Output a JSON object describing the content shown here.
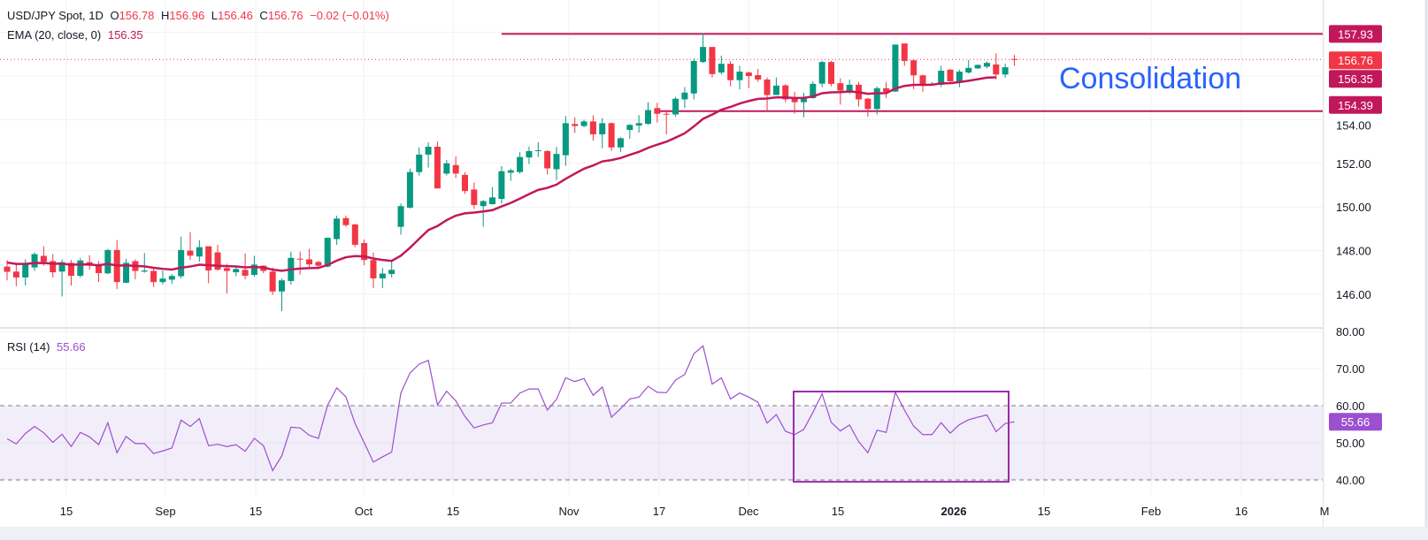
{
  "header": {
    "symbol": "USD/JPY Spot, 1D",
    "open_label": "O",
    "open": "156.78",
    "high_label": "H",
    "high": "156.96",
    "low_label": "L",
    "low": "156.46",
    "close_label": "C",
    "close": "156.76",
    "change": "−0.02 (−0.01%)",
    "ema_label": "EMA (20, close, 0)",
    "ema_value": "156.35",
    "rsi_label": "RSI (14)",
    "rsi_value": "55.66"
  },
  "annotation": "Consolidation",
  "colors": {
    "up": "#089981",
    "down": "#f23645",
    "ema": "#c2185b",
    "rsi": "#9c4fd0",
    "annotation": "#2962ff",
    "box": "#9c27b0"
  },
  "chart_data": [
    {
      "type": "candlestick",
      "title": "USD/JPY Spot, 1D",
      "ylim": [
        145,
        158.5
      ],
      "yticks": [
        "146.00",
        "148.00",
        "150.00",
        "152.00",
        "154.00"
      ],
      "xticks": [
        "15",
        "Sep",
        "15",
        "Oct",
        "15",
        "Nov",
        "17",
        "Dec",
        "15",
        "2026",
        "15",
        "Feb",
        "16",
        "M"
      ],
      "price_tags": [
        {
          "value": 157.93,
          "label": "157.93",
          "color": "#c2185b"
        },
        {
          "value": 156.76,
          "label": "156.76",
          "color": "#f23645"
        },
        {
          "value": 156.35,
          "label": "156.35",
          "color": "#c2185b"
        },
        {
          "value": 154.39,
          "label": "154.39",
          "color": "#c2185b"
        }
      ],
      "hlines": [
        {
          "value": 157.93,
          "from_index": 54
        },
        {
          "value": 154.39,
          "from_index": 71
        }
      ],
      "last_price_line": 156.76,
      "ema_period": 20,
      "ohlc": [
        [
          147.27,
          147.57,
          146.64,
          147.03
        ],
        [
          147.04,
          147.4,
          146.37,
          146.77
        ],
        [
          146.77,
          147.6,
          146.4,
          147.4
        ],
        [
          147.23,
          147.92,
          147.07,
          147.84
        ],
        [
          147.76,
          148.2,
          147.31,
          147.49
        ],
        [
          147.52,
          147.84,
          146.77,
          147.01
        ],
        [
          147.04,
          147.6,
          145.9,
          147.47
        ],
        [
          147.44,
          147.57,
          146.4,
          146.85
        ],
        [
          146.85,
          147.67,
          146.77,
          147.55
        ],
        [
          147.47,
          147.79,
          147.13,
          147.31
        ],
        [
          147.31,
          147.52,
          146.56,
          146.97
        ],
        [
          146.96,
          148.08,
          146.93,
          148.03
        ],
        [
          148.03,
          148.48,
          146.24,
          146.56
        ],
        [
          146.53,
          147.63,
          146.51,
          147.44
        ],
        [
          147.52,
          147.6,
          146.69,
          147.07
        ],
        [
          147.04,
          147.89,
          146.99,
          147.09
        ],
        [
          147.07,
          147.2,
          146.33,
          146.56
        ],
        [
          146.56,
          147.09,
          146.45,
          146.72
        ],
        [
          146.67,
          146.93,
          146.48,
          146.84
        ],
        [
          146.83,
          148.64,
          146.73,
          148.03
        ],
        [
          148.0,
          148.85,
          147.57,
          147.77
        ],
        [
          147.73,
          148.48,
          147.49,
          148.16
        ],
        [
          148.2,
          148.2,
          146.51,
          147.09
        ],
        [
          147.92,
          148.27,
          147.07,
          147.13
        ],
        [
          147.2,
          147.4,
          146.03,
          147.07
        ],
        [
          147.01,
          147.33,
          146.83,
          147.16
        ],
        [
          147.12,
          147.87,
          146.69,
          146.85
        ],
        [
          146.89,
          147.76,
          146.8,
          147.36
        ],
        [
          147.31,
          147.33,
          146.96,
          147.07
        ],
        [
          147.04,
          147.23,
          145.97,
          146.13
        ],
        [
          146.13,
          146.72,
          145.23,
          146.64
        ],
        [
          146.61,
          147.95,
          146.45,
          147.67
        ],
        [
          147.63,
          147.95,
          146.91,
          147.6
        ],
        [
          147.6,
          148.08,
          147.2,
          147.37
        ],
        [
          147.48,
          147.53,
          147.23,
          147.31
        ],
        [
          147.27,
          148.6,
          147.23,
          148.59
        ],
        [
          148.53,
          149.6,
          148.27,
          149.47
        ],
        [
          149.49,
          149.6,
          149.09,
          149.17
        ],
        [
          149.2,
          149.23,
          148.16,
          148.27
        ],
        [
          148.35,
          148.51,
          147.33,
          147.57
        ],
        [
          147.57,
          147.92,
          146.29,
          146.73
        ],
        [
          146.73,
          147.2,
          146.29,
          146.95
        ],
        [
          146.93,
          147.51,
          146.77,
          147.12
        ],
        [
          149.09,
          150.16,
          148.73,
          150.04
        ],
        [
          149.97,
          151.76,
          149.93,
          151.6
        ],
        [
          151.6,
          152.73,
          151.44,
          152.4
        ],
        [
          152.4,
          152.96,
          151.8,
          152.76
        ],
        [
          152.76,
          153.0,
          150.85,
          150.85
        ],
        [
          151.53,
          152.16,
          151.44,
          152.0
        ],
        [
          151.92,
          152.32,
          151.33,
          151.53
        ],
        [
          151.47,
          151.6,
          150.6,
          150.73
        ],
        [
          150.8,
          151.12,
          149.91,
          150.09
        ],
        [
          150.04,
          150.32,
          149.09,
          150.27
        ],
        [
          150.13,
          150.91,
          150.11,
          150.44
        ],
        [
          150.37,
          151.87,
          150.16,
          151.64
        ],
        [
          151.57,
          151.76,
          151.2,
          151.68
        ],
        [
          151.6,
          152.51,
          151.53,
          152.29
        ],
        [
          152.27,
          152.76,
          151.97,
          152.56
        ],
        [
          152.6,
          152.96,
          152.29,
          152.6
        ],
        [
          152.56,
          152.61,
          151.49,
          151.77
        ],
        [
          151.73,
          152.75,
          151.24,
          152.43
        ],
        [
          152.37,
          154.17,
          151.89,
          153.84
        ],
        [
          153.8,
          154.11,
          153.39,
          153.71
        ],
        [
          153.71,
          154.0,
          153.65,
          153.92
        ],
        [
          153.92,
          154.2,
          153.04,
          153.33
        ],
        [
          153.33,
          154.07,
          152.69,
          153.84
        ],
        [
          153.84,
          153.87,
          152.57,
          152.73
        ],
        [
          152.73,
          153.2,
          152.53,
          153.15
        ],
        [
          153.53,
          153.79,
          153.13,
          153.76
        ],
        [
          153.73,
          154.21,
          153.41,
          153.84
        ],
        [
          153.81,
          154.8,
          153.76,
          154.44
        ],
        [
          154.53,
          154.77,
          153.87,
          154.27
        ],
        [
          154.27,
          154.45,
          153.33,
          154.26
        ],
        [
          154.24,
          155.04,
          154.13,
          154.96
        ],
        [
          154.93,
          155.49,
          154.53,
          155.24
        ],
        [
          155.2,
          156.8,
          154.93,
          156.69
        ],
        [
          156.64,
          157.95,
          156.6,
          157.33
        ],
        [
          157.33,
          157.33,
          155.93,
          156.09
        ],
        [
          156.16,
          156.93,
          156.07,
          156.56
        ],
        [
          156.56,
          156.69,
          155.53,
          155.81
        ],
        [
          155.81,
          156.47,
          155.39,
          156.2
        ],
        [
          156.16,
          156.2,
          155.44,
          156.0
        ],
        [
          156.04,
          156.33,
          155.73,
          155.84
        ],
        [
          155.84,
          155.93,
          154.4,
          155.13
        ],
        [
          155.13,
          155.93,
          155.13,
          155.56
        ],
        [
          155.57,
          155.63,
          154.8,
          154.93
        ],
        [
          155.0,
          155.28,
          154.27,
          154.8
        ],
        [
          154.8,
          155.23,
          154.11,
          155.04
        ],
        [
          154.99,
          155.76,
          154.96,
          155.64
        ],
        [
          155.65,
          156.69,
          155.49,
          156.64
        ],
        [
          156.64,
          156.69,
          155.53,
          155.64
        ],
        [
          155.67,
          155.89,
          154.69,
          155.33
        ],
        [
          155.27,
          155.84,
          155.17,
          155.6
        ],
        [
          155.6,
          155.73,
          154.6,
          154.93
        ],
        [
          154.96,
          155.0,
          154.13,
          154.49
        ],
        [
          154.49,
          155.52,
          154.24,
          155.44
        ],
        [
          155.44,
          155.73,
          155.0,
          155.27
        ],
        [
          155.29,
          157.44,
          155.27,
          157.44
        ],
        [
          157.49,
          157.49,
          156.47,
          156.69
        ],
        [
          156.72,
          156.77,
          155.4,
          156.03
        ],
        [
          156.03,
          156.07,
          155.28,
          155.63
        ],
        [
          155.65,
          155.73,
          155.57,
          155.65
        ],
        [
          155.6,
          156.47,
          155.49,
          156.24
        ],
        [
          156.29,
          156.33,
          155.71,
          155.76
        ],
        [
          155.76,
          156.29,
          155.49,
          156.2
        ],
        [
          156.16,
          156.73,
          156.11,
          156.37
        ],
        [
          156.35,
          156.53,
          156.32,
          156.51
        ],
        [
          156.43,
          156.67,
          156.35,
          156.6
        ],
        [
          156.53,
          157.04,
          155.84,
          156.07
        ],
        [
          156.07,
          156.56,
          155.93,
          156.4
        ],
        [
          156.78,
          156.96,
          156.46,
          156.76
        ]
      ]
    },
    {
      "type": "line",
      "title": "RSI (14)",
      "ylim": [
        38,
        82
      ],
      "yticks": [
        "80.00",
        "70.00",
        "60.00",
        "50.00",
        "40.00"
      ],
      "band": [
        40,
        60
      ],
      "highlight_box": {
        "from_index": 89,
        "to_index": 112,
        "rsi_range": [
          39.5,
          63.8
        ]
      },
      "last_tag": "55.66",
      "values": [
        51.1,
        49.7,
        52.5,
        54.4,
        52.7,
        50.1,
        52.3,
        49.0,
        52.8,
        51.6,
        49.5,
        55.4,
        47.3,
        51.7,
        49.8,
        49.8,
        47.1,
        47.8,
        48.6,
        56.1,
        54.4,
        56.5,
        49.2,
        49.6,
        49.0,
        49.5,
        47.7,
        51.2,
        49.2,
        42.5,
        46.5,
        54.2,
        54.0,
        52.0,
        51.2,
        60.1,
        64.8,
        62.4,
        55.2,
        50.0,
        44.8,
        46.2,
        47.5,
        63.4,
        68.8,
        71.2,
        72.2,
        60.2,
        63.9,
        61.3,
        57.1,
        54.0,
        54.8,
        55.4,
        60.7,
        60.7,
        63.4,
        64.5,
        64.5,
        58.8,
        61.7,
        67.5,
        66.5,
        67.3,
        62.8,
        65.0,
        56.9,
        59.2,
        61.8,
        62.3,
        65.2,
        63.6,
        63.5,
        66.9,
        68.4,
        74.0,
        76.1,
        65.8,
        67.5,
        61.8,
        63.4,
        62.3,
        60.9,
        55.3,
        57.6,
        53.1,
        52.2,
        53.6,
        58.2,
        63.2,
        55.5,
        53.2,
        54.8,
        50.3,
        47.3,
        53.4,
        52.8,
        63.6,
        58.8,
        54.5,
        52.2,
        52.2,
        55.4,
        52.6,
        54.9,
        56.2,
        56.9,
        57.5,
        53.0,
        55.2,
        55.66
      ]
    }
  ]
}
